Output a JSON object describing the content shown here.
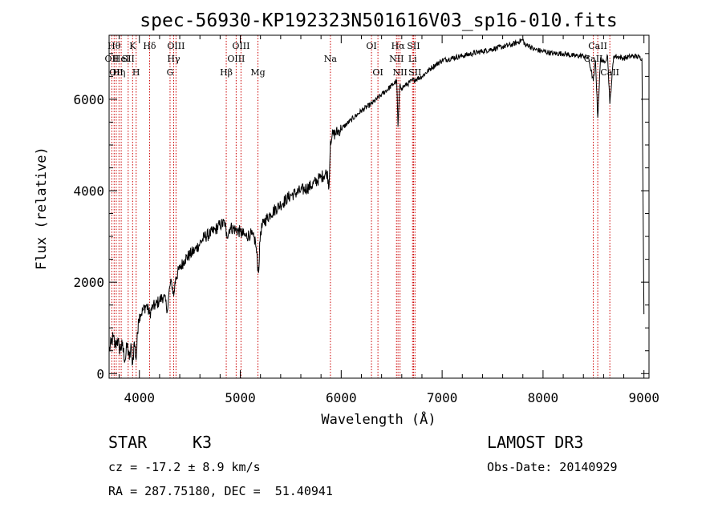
{
  "chart_data": {
    "type": "line",
    "title": "spec-56930-KP192323N501616V03_sp16-010.fits",
    "xlabel": "Wavelength (Å)",
    "ylabel": "Flux (relative)",
    "xlim": [
      3700,
      9050
    ],
    "ylim": [
      -100,
      7400
    ],
    "xticks": [
      4000,
      5000,
      6000,
      7000,
      8000,
      9000
    ],
    "yticks": [
      0,
      2000,
      4000,
      6000
    ],
    "series": [
      {
        "name": "flux",
        "x": [
          3700,
          3720,
          3740,
          3760,
          3780,
          3800,
          3830,
          3860,
          3880,
          3900,
          3920,
          3933,
          3950,
          3968,
          3990,
          4010,
          4040,
          4070,
          4101,
          4130,
          4160,
          4200,
          4240,
          4280,
          4300,
          4320,
          4340,
          4360,
          4400,
          4450,
          4500,
          4550,
          4600,
          4650,
          4700,
          4750,
          4800,
          4850,
          4861,
          4900,
          4950,
          5000,
          5050,
          5100,
          5150,
          5180,
          5200,
          5230,
          5300,
          5400,
          5500,
          5600,
          5700,
          5800,
          5860,
          5880,
          5893,
          5910,
          6000,
          6100,
          6200,
          6300,
          6400,
          6500,
          6550,
          6563,
          6580,
          6600,
          6700,
          6800,
          6900,
          7000,
          7100,
          7200,
          7300,
          7400,
          7500,
          7600,
          7700,
          7800,
          7830,
          7850,
          7900,
          8000,
          8100,
          8200,
          8300,
          8400,
          8450,
          8498,
          8520,
          8542,
          8570,
          8600,
          8640,
          8662,
          8700,
          8800,
          8900,
          8980,
          9000
        ],
        "y": [
          500,
          650,
          800,
          600,
          750,
          550,
          600,
          300,
          650,
          300,
          600,
          200,
          700,
          300,
          1200,
          1300,
          1400,
          1500,
          1300,
          1450,
          1500,
          1600,
          1700,
          1400,
          1900,
          2000,
          1700,
          2100,
          2300,
          2500,
          2600,
          2700,
          2850,
          3000,
          3050,
          3150,
          3250,
          3300,
          3000,
          3200,
          3150,
          3100,
          3000,
          3050,
          2900,
          2200,
          3100,
          3300,
          3500,
          3700,
          3900,
          4000,
          4100,
          4300,
          4400,
          4100,
          5100,
          5200,
          5350,
          5550,
          5750,
          5900,
          6100,
          6300,
          6400,
          5400,
          6300,
          6250,
          6400,
          6500,
          6700,
          6850,
          6900,
          6950,
          7000,
          7050,
          7100,
          7150,
          7200,
          7300,
          7150,
          7200,
          7100,
          7050,
          7000,
          7000,
          6950,
          6950,
          6900,
          6400,
          6850,
          5600,
          6900,
          6800,
          6950,
          5900,
          6950,
          6900,
          6950,
          6900,
          1300
        ]
      }
    ],
    "lines": [
      {
        "wave": 3727,
        "labels": [
          "OII"
        ],
        "row": 2
      },
      {
        "wave": 3750,
        "labels": [
          "Hθ"
        ],
        "row": 1
      },
      {
        "wave": 3771,
        "labels": [
          "OII"
        ],
        "row": 3
      },
      {
        "wave": 3798,
        "labels": [
          "Hη"
        ],
        "row": 3
      },
      {
        "wave": 3820,
        "labels": [
          "HeI"
        ],
        "row": 2
      },
      {
        "wave": 3889,
        "labels": [
          "SII"
        ],
        "row": 2
      },
      {
        "wave": 3933,
        "labels": [
          "K"
        ],
        "row": 1
      },
      {
        "wave": 3968,
        "labels": [
          "H"
        ],
        "row": 3
      },
      {
        "wave": 4101,
        "labels": [
          "Hδ"
        ],
        "row": 1
      },
      {
        "wave": 4304,
        "labels": [
          "G"
        ],
        "row": 3
      },
      {
        "wave": 4340,
        "labels": [
          "Hγ"
        ],
        "row": 2
      },
      {
        "wave": 4363,
        "labels": [
          "OIII"
        ],
        "row": 1
      },
      {
        "wave": 4861,
        "labels": [
          "Hβ"
        ],
        "row": 3
      },
      {
        "wave": 4959,
        "labels": [
          "OIII"
        ],
        "row": 2
      },
      {
        "wave": 5007,
        "labels": [
          "OIII"
        ],
        "row": 1
      },
      {
        "wave": 5175,
        "labels": [
          "Mg"
        ],
        "row": 3
      },
      {
        "wave": 5893,
        "labels": [
          "Na"
        ],
        "row": 2
      },
      {
        "wave": 6300,
        "labels": [
          "OI"
        ],
        "row": 1
      },
      {
        "wave": 6364,
        "labels": [
          "OI"
        ],
        "row": 3
      },
      {
        "wave": 6548,
        "labels": [
          "NII"
        ],
        "row": 2
      },
      {
        "wave": 6563,
        "labels": [
          "Hα"
        ],
        "row": 1
      },
      {
        "wave": 6583,
        "labels": [
          "NII"
        ],
        "row": 3
      },
      {
        "wave": 6707,
        "labels": [
          "Li"
        ],
        "row": 2
      },
      {
        "wave": 6717,
        "labels": [
          "SII"
        ],
        "row": 1
      },
      {
        "wave": 6731,
        "labels": [
          "SII"
        ],
        "row": 3
      },
      {
        "wave": 8498,
        "labels": [
          "CaII"
        ],
        "row": 2
      },
      {
        "wave": 8542,
        "labels": [
          "CaII"
        ],
        "row": 1
      },
      {
        "wave": 8662,
        "labels": [
          "CaII"
        ],
        "row": 3
      }
    ]
  },
  "info": {
    "class_label": "STAR",
    "subclass": "K3",
    "survey": "LAMOST DR3",
    "cz_text": "cz = -17.2 ± 8.9 km/s",
    "obs_date_text": "Obs-Date: 20140929",
    "coords_text": "RA = 287.75180, DEC =  51.40941"
  },
  "colors": {
    "line_marker": "#cc0000",
    "spectrum": "#000000",
    "axes": "#000000"
  }
}
